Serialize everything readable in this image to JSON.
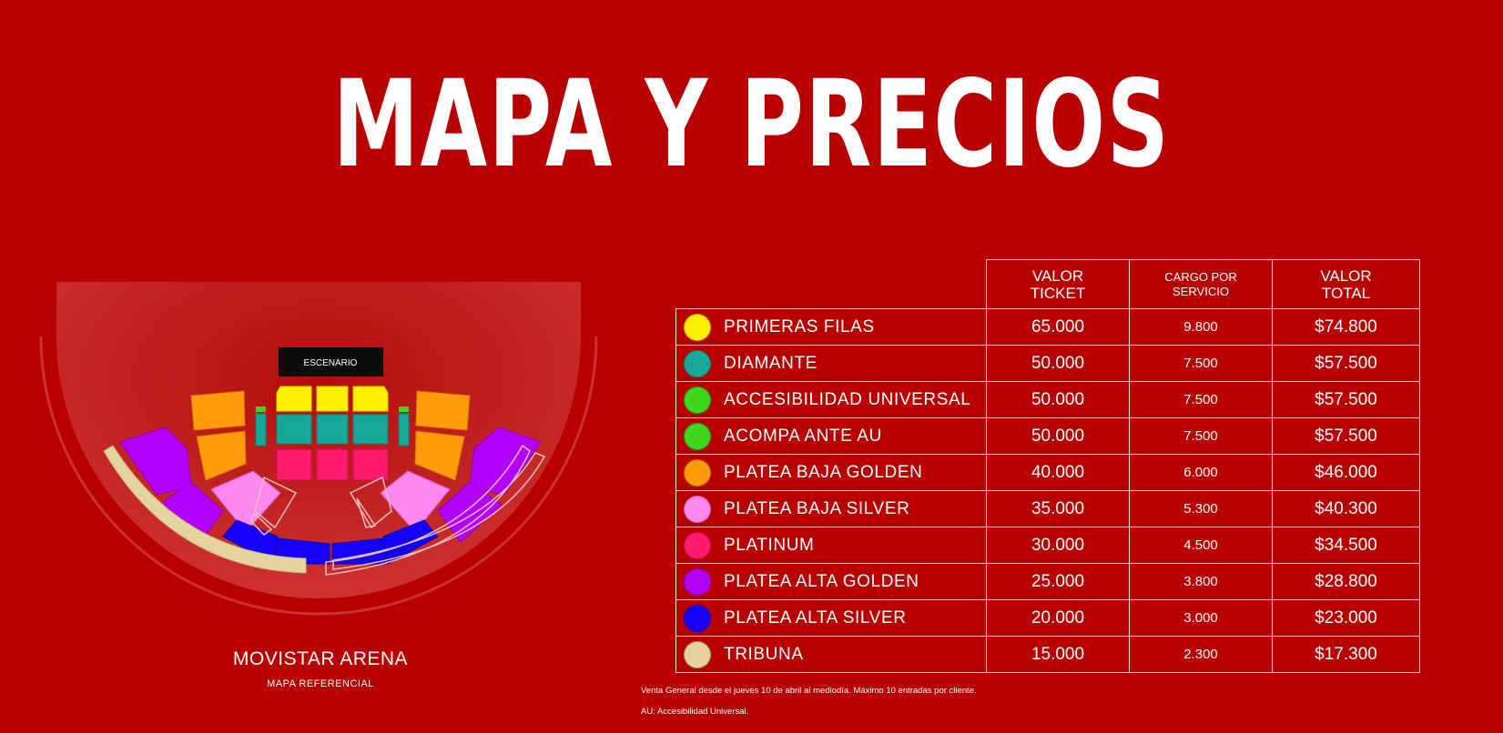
{
  "title": "MAPA Y PRECIOS",
  "map": {
    "stage_label": "ESCENARIO",
    "venue_name": "MOVISTAR ARENA",
    "venue_sub": "MAPA REFERENCIAL"
  },
  "table": {
    "headers": {
      "ticket_line1": "VALOR",
      "ticket_line2": "TICKET",
      "service_line1": "CARGO POR",
      "service_line2": "SERVICIO",
      "total_line1": "VALOR",
      "total_line2": "TOTAL"
    },
    "rows": [
      {
        "zone": "PRIMERAS FILAS",
        "color": "#ffef00",
        "ticket": "65.000",
        "service": "9.800",
        "total": "$74.800"
      },
      {
        "zone": "DIAMANTE",
        "color": "#17a89a",
        "ticket": "50.000",
        "service": "7.500",
        "total": "$57.500"
      },
      {
        "zone": "ACCESIBILIDAD UNIVERSAL",
        "color": "#3fd61e",
        "ticket": "50.000",
        "service": "7.500",
        "total": "$57.500"
      },
      {
        "zone": "ACOMPA ANTE AU",
        "color": "#3fd61e",
        "ticket": "50.000",
        "service": "7.500",
        "total": "$57.500"
      },
      {
        "zone": "PLATEA BAJA GOLDEN",
        "color": "#ff9b0a",
        "ticket": "40.000",
        "service": "6.000",
        "total": "$46.000"
      },
      {
        "zone": "PLATEA BAJA SILVER",
        "color": "#ff88f0",
        "ticket": "35.000",
        "service": "5.300",
        "total": "$40.300"
      },
      {
        "zone": "PLATINUM",
        "color": "#ff1a6e",
        "ticket": "30.000",
        "service": "4.500",
        "total": "$34.500"
      },
      {
        "zone": "PLATEA ALTA GOLDEN",
        "color": "#b400ff",
        "ticket": "25.000",
        "service": "3.800",
        "total": "$28.800"
      },
      {
        "zone": "PLATEA ALTA SILVER",
        "color": "#1500ff",
        "ticket": "20.000",
        "service": "3.000",
        "total": "$23.000"
      },
      {
        "zone": "TRIBUNA",
        "color": "#e6d29c",
        "ticket": "15.000",
        "service": "2.300",
        "total": "$17.300"
      }
    ]
  },
  "notes": {
    "note1": "Venta General desde el jueves 10 de abril al mediodía. Máximo 10 entradas por cliente.",
    "note2": "AU: Accesibilidad Universal."
  }
}
